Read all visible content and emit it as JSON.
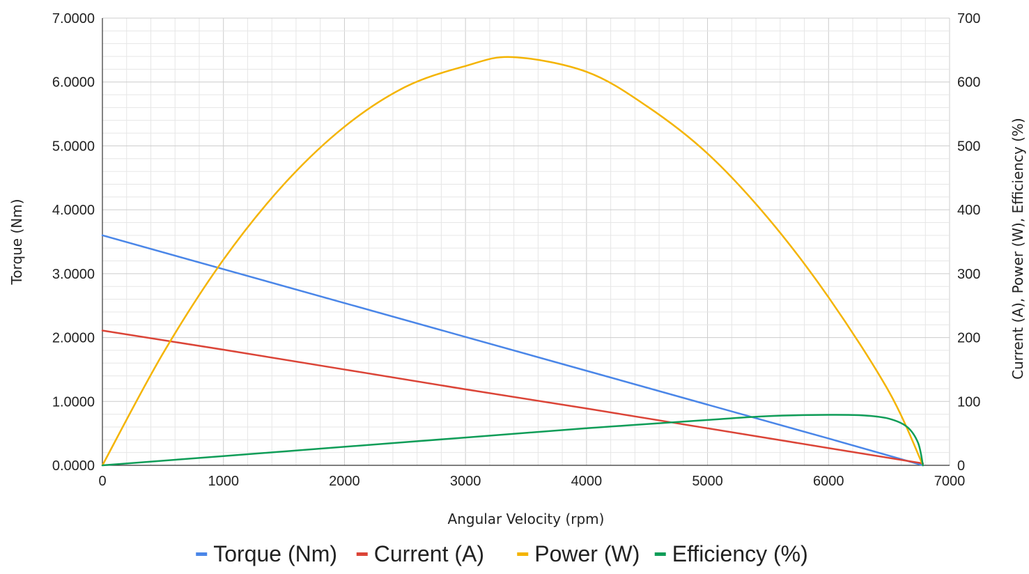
{
  "chart_data": {
    "type": "line",
    "title": "",
    "xlabel": "Angular Velocity (rpm)",
    "ylabel_left": "Torque (Nm)",
    "ylabel_right": "Current (A), Power (W), Efficiency (%)",
    "xlim": [
      0,
      7000
    ],
    "ylim_left": [
      0,
      7
    ],
    "ylim_right": [
      0,
      700
    ],
    "x_ticks": [
      "0",
      "1000",
      "2000",
      "3000",
      "4000",
      "5000",
      "6000",
      "7000"
    ],
    "y_left_ticks": [
      "0.0000",
      "1.0000",
      "2.0000",
      "3.0000",
      "4.0000",
      "5.0000",
      "6.0000",
      "7.0000"
    ],
    "y_right_ticks": [
      "0",
      "100",
      "200",
      "300",
      "400",
      "500",
      "600",
      "700"
    ],
    "grid": true,
    "legend_position": "bottom",
    "series": [
      {
        "name": "Torque (Nm)",
        "axis": "left",
        "color": "#4a86e8",
        "x": [
          0,
          1000,
          2000,
          3000,
          4000,
          5000,
          6000,
          6780
        ],
        "y": [
          3.6,
          3.07,
          2.54,
          2.01,
          1.48,
          0.95,
          0.42,
          0.0
        ]
      },
      {
        "name": "Current (A)",
        "axis": "right",
        "color": "#db4437",
        "x": [
          0,
          1000,
          2000,
          3000,
          4000,
          5000,
          6000,
          6780
        ],
        "y": [
          211,
          181,
          150,
          119,
          89,
          58,
          27,
          3
        ]
      },
      {
        "name": "Power (W)",
        "axis": "right",
        "color": "#f4b400",
        "x": [
          0,
          500,
          1000,
          1500,
          2000,
          2500,
          3000,
          3390,
          4000,
          4500,
          5000,
          5500,
          6000,
          6500,
          6780
        ],
        "y": [
          0,
          175,
          322,
          440,
          530,
          592,
          625,
          639,
          616,
          562,
          488,
          387,
          263,
          115,
          0
        ]
      },
      {
        "name": "Efficiency (%)",
        "axis": "right",
        "color": "#0f9d58",
        "x": [
          0,
          1000,
          2000,
          3000,
          4000,
          5000,
          5500,
          6000,
          6300,
          6500,
          6650,
          6740,
          6780
        ],
        "y": [
          0,
          14.5,
          29,
          43.5,
          58,
          71,
          77,
          79,
          78,
          73,
          60,
          35,
          0
        ]
      }
    ]
  }
}
